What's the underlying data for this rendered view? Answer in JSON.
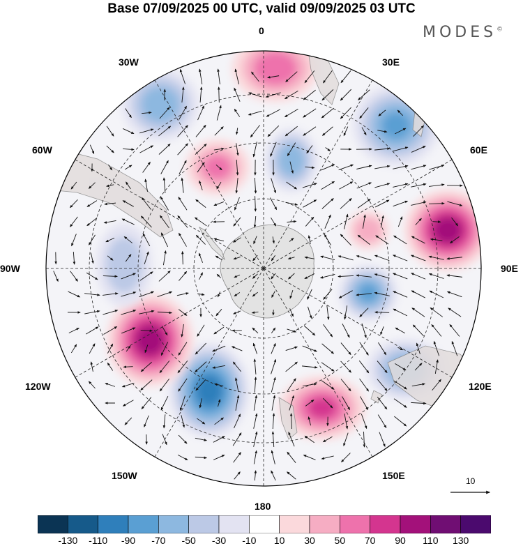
{
  "title": "Base 07/09/2025 00 UTC, valid 09/09/2025 03 UTC",
  "brand": "MODES",
  "brand_mark": "©",
  "longitude_labels": {
    "lon_0": "0",
    "lon_30e": "30E",
    "lon_60e": "60E",
    "lon_90e": "90E",
    "lon_120e": "120E",
    "lon_150e": "150E",
    "lon_180": "180",
    "lon_150w": "150W",
    "lon_120w": "120W",
    "lon_90w": "90W",
    "lon_60w": "60W",
    "lon_30w": "30W"
  },
  "reference_vector": "10",
  "colorbar": {
    "labels": [
      "-130",
      "-110",
      "-90",
      "-70",
      "-50",
      "-30",
      "-10",
      "10",
      "30",
      "50",
      "70",
      "90",
      "110",
      "130"
    ],
    "colors": [
      "#0b3454",
      "#165a8a",
      "#2f7fbb",
      "#5a9fd3",
      "#8db8e0",
      "#bcc9e6",
      "#e3e3f2",
      "#ffffff",
      "#fbd9dc",
      "#f6adc3",
      "#ee72ac",
      "#d4358f",
      "#a3117a",
      "#700e73",
      "#4b0a6e"
    ]
  },
  "anomaly_centers": [
    {
      "name": "positive-anomaly-0",
      "value": 70
    },
    {
      "name": "positive-anomaly-40w",
      "value": 60
    },
    {
      "name": "negative-anomaly-10e",
      "value": -70
    },
    {
      "name": "negative-anomaly-30e",
      "value": -80
    },
    {
      "name": "negative-anomaly-30w",
      "value": -70
    },
    {
      "name": "positive-anomaly-75e",
      "value": 110
    },
    {
      "name": "positive-anomaly-65e",
      "value": 50
    },
    {
      "name": "negative-anomaly-100e",
      "value": -80
    },
    {
      "name": "negative-anomaly-120e",
      "value": -70
    },
    {
      "name": "positive-anomaly-145e",
      "value": 80
    },
    {
      "name": "negative-anomaly-150w",
      "value": -110
    },
    {
      "name": "positive-anomaly-120w",
      "value": 110
    },
    {
      "name": "negative-anomaly-90w",
      "value": -50
    }
  ]
}
